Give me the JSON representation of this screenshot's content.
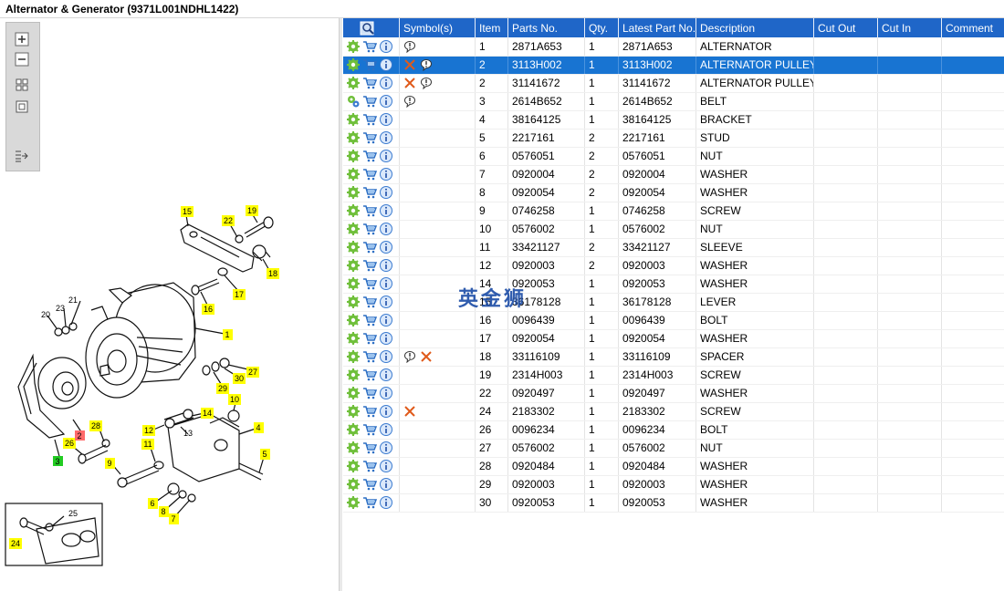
{
  "window": {
    "title": "Alternator & Generator (9371L001NDHL1422)"
  },
  "toolbar": {
    "tools": [
      "zoom-in-icon",
      "zoom-out-icon",
      "fit-grid-icon",
      "actual-size-icon",
      "sync-list-icon"
    ]
  },
  "table": {
    "columns": [
      "",
      "Symbol(s)",
      "Item",
      "Parts No.",
      "Qty.",
      "Latest Part No.",
      "Description",
      "Cut Out",
      "Cut In",
      "Comment"
    ],
    "rows": [
      {
        "icon1": "gear",
        "symbols": [
          "bubble"
        ],
        "item": "1",
        "part_no": "2871A653",
        "qty": "1",
        "latest": "2871A653",
        "desc": "ALTERNATOR",
        "selected": false
      },
      {
        "icon1": "gear",
        "symbols": [
          "cross",
          "bubble"
        ],
        "item": "2",
        "part_no": "3113H002",
        "qty": "1",
        "latest": "3113H002",
        "desc": "ALTERNATOR PULLEY",
        "selected": true
      },
      {
        "icon1": "gear",
        "symbols": [
          "cross",
          "bubble"
        ],
        "item": "2",
        "part_no": "31141672",
        "qty": "1",
        "latest": "31141672",
        "desc": "ALTERNATOR PULLEY",
        "selected": false
      },
      {
        "icon1": "gears",
        "symbols": [
          "bubble"
        ],
        "item": "3",
        "part_no": "2614B652",
        "qty": "1",
        "latest": "2614B652",
        "desc": "BELT",
        "selected": false
      },
      {
        "icon1": "gear",
        "symbols": [],
        "item": "4",
        "part_no": "38164125",
        "qty": "1",
        "latest": "38164125",
        "desc": "BRACKET",
        "selected": false
      },
      {
        "icon1": "gear",
        "symbols": [],
        "item": "5",
        "part_no": "2217161",
        "qty": "2",
        "latest": "2217161",
        "desc": "STUD",
        "selected": false
      },
      {
        "icon1": "gear",
        "symbols": [],
        "item": "6",
        "part_no": "0576051",
        "qty": "2",
        "latest": "0576051",
        "desc": "NUT",
        "selected": false
      },
      {
        "icon1": "gear",
        "symbols": [],
        "item": "7",
        "part_no": "0920004",
        "qty": "2",
        "latest": "0920004",
        "desc": "WASHER",
        "selected": false
      },
      {
        "icon1": "gear",
        "symbols": [],
        "item": "8",
        "part_no": "0920054",
        "qty": "2",
        "latest": "0920054",
        "desc": "WASHER",
        "selected": false
      },
      {
        "icon1": "gear",
        "symbols": [],
        "item": "9",
        "part_no": "0746258",
        "qty": "1",
        "latest": "0746258",
        "desc": "SCREW",
        "selected": false
      },
      {
        "icon1": "gear",
        "symbols": [],
        "item": "10",
        "part_no": "0576002",
        "qty": "1",
        "latest": "0576002",
        "desc": "NUT",
        "selected": false
      },
      {
        "icon1": "gear",
        "symbols": [],
        "item": "11",
        "part_no": "33421127",
        "qty": "2",
        "latest": "33421127",
        "desc": "SLEEVE",
        "selected": false
      },
      {
        "icon1": "gear",
        "symbols": [],
        "item": "12",
        "part_no": "0920003",
        "qty": "2",
        "latest": "0920003",
        "desc": "WASHER",
        "selected": false
      },
      {
        "icon1": "gear",
        "symbols": [],
        "item": "14",
        "part_no": "0920053",
        "qty": "1",
        "latest": "0920053",
        "desc": "WASHER",
        "selected": false
      },
      {
        "icon1": "gear",
        "symbols": [],
        "item": "15",
        "part_no": "36178128",
        "qty": "1",
        "latest": "36178128",
        "desc": "LEVER",
        "selected": false
      },
      {
        "icon1": "gear",
        "symbols": [],
        "item": "16",
        "part_no": "0096439",
        "qty": "1",
        "latest": "0096439",
        "desc": "BOLT",
        "selected": false
      },
      {
        "icon1": "gear",
        "symbols": [],
        "item": "17",
        "part_no": "0920054",
        "qty": "1",
        "latest": "0920054",
        "desc": "WASHER",
        "selected": false
      },
      {
        "icon1": "gear",
        "symbols": [
          "bubble",
          "cross"
        ],
        "item": "18",
        "part_no": "33116109",
        "qty": "1",
        "latest": "33116109",
        "desc": "SPACER",
        "selected": false
      },
      {
        "icon1": "gear",
        "symbols": [],
        "item": "19",
        "part_no": "2314H003",
        "qty": "1",
        "latest": "2314H003",
        "desc": "SCREW",
        "selected": false
      },
      {
        "icon1": "gear",
        "symbols": [],
        "item": "22",
        "part_no": "0920497",
        "qty": "1",
        "latest": "0920497",
        "desc": "WASHER",
        "selected": false
      },
      {
        "icon1": "gear",
        "symbols": [
          "cross"
        ],
        "item": "24",
        "part_no": "2183302",
        "qty": "1",
        "latest": "2183302",
        "desc": "SCREW",
        "selected": false
      },
      {
        "icon1": "gear",
        "symbols": [],
        "item": "26",
        "part_no": "0096234",
        "qty": "1",
        "latest": "0096234",
        "desc": "BOLT",
        "selected": false
      },
      {
        "icon1": "gear",
        "symbols": [],
        "item": "27",
        "part_no": "0576002",
        "qty": "1",
        "latest": "0576002",
        "desc": "NUT",
        "selected": false
      },
      {
        "icon1": "gear",
        "symbols": [],
        "item": "28",
        "part_no": "0920484",
        "qty": "1",
        "latest": "0920484",
        "desc": "WASHER",
        "selected": false
      },
      {
        "icon1": "gear",
        "symbols": [],
        "item": "29",
        "part_no": "0920003",
        "qty": "1",
        "latest": "0920003",
        "desc": "WASHER",
        "selected": false
      },
      {
        "icon1": "gear",
        "symbols": [],
        "item": "30",
        "part_no": "0920053",
        "qty": "1",
        "latest": "0920053",
        "desc": "WASHER",
        "selected": false
      }
    ]
  },
  "diagram": {
    "callouts": [
      {
        "num": "15",
        "hl": "yellow"
      },
      {
        "num": "22",
        "hl": "yellow"
      },
      {
        "num": "19",
        "hl": "yellow"
      },
      {
        "num": "18",
        "hl": "yellow"
      },
      {
        "num": "17",
        "hl": "yellow"
      },
      {
        "num": "16",
        "hl": "yellow"
      },
      {
        "num": "1",
        "hl": "yellow"
      },
      {
        "num": "27",
        "hl": "yellow"
      },
      {
        "num": "30",
        "hl": "yellow"
      },
      {
        "num": "29",
        "hl": "yellow"
      },
      {
        "num": "10",
        "hl": "yellow"
      },
      {
        "num": "14",
        "hl": "yellow"
      },
      {
        "num": "4",
        "hl": "yellow"
      },
      {
        "num": "5",
        "hl": "yellow"
      },
      {
        "num": "28",
        "hl": "yellow"
      },
      {
        "num": "12",
        "hl": "yellow"
      },
      {
        "num": "11",
        "hl": "yellow"
      },
      {
        "num": "26",
        "hl": "yellow"
      },
      {
        "num": "2",
        "hl": "red"
      },
      {
        "num": "3",
        "hl": "green"
      },
      {
        "num": "9",
        "hl": "yellow"
      },
      {
        "num": "6",
        "hl": "yellow"
      },
      {
        "num": "8",
        "hl": "yellow"
      },
      {
        "num": "7",
        "hl": "yellow"
      },
      {
        "num": "24",
        "hl": "yellow"
      },
      {
        "num": "23",
        "hl": "none"
      },
      {
        "num": "21",
        "hl": "none"
      },
      {
        "num": "20",
        "hl": "none"
      },
      {
        "num": "13",
        "hl": "none"
      },
      {
        "num": "25",
        "hl": "none"
      }
    ]
  },
  "watermark": "英金狮",
  "colors": {
    "header": "#1f66c8",
    "selected_row": "#1874d2",
    "callout_yellow": "#ffff00",
    "callout_red": "#ff6b6b",
    "callout_green": "#22cc22"
  }
}
